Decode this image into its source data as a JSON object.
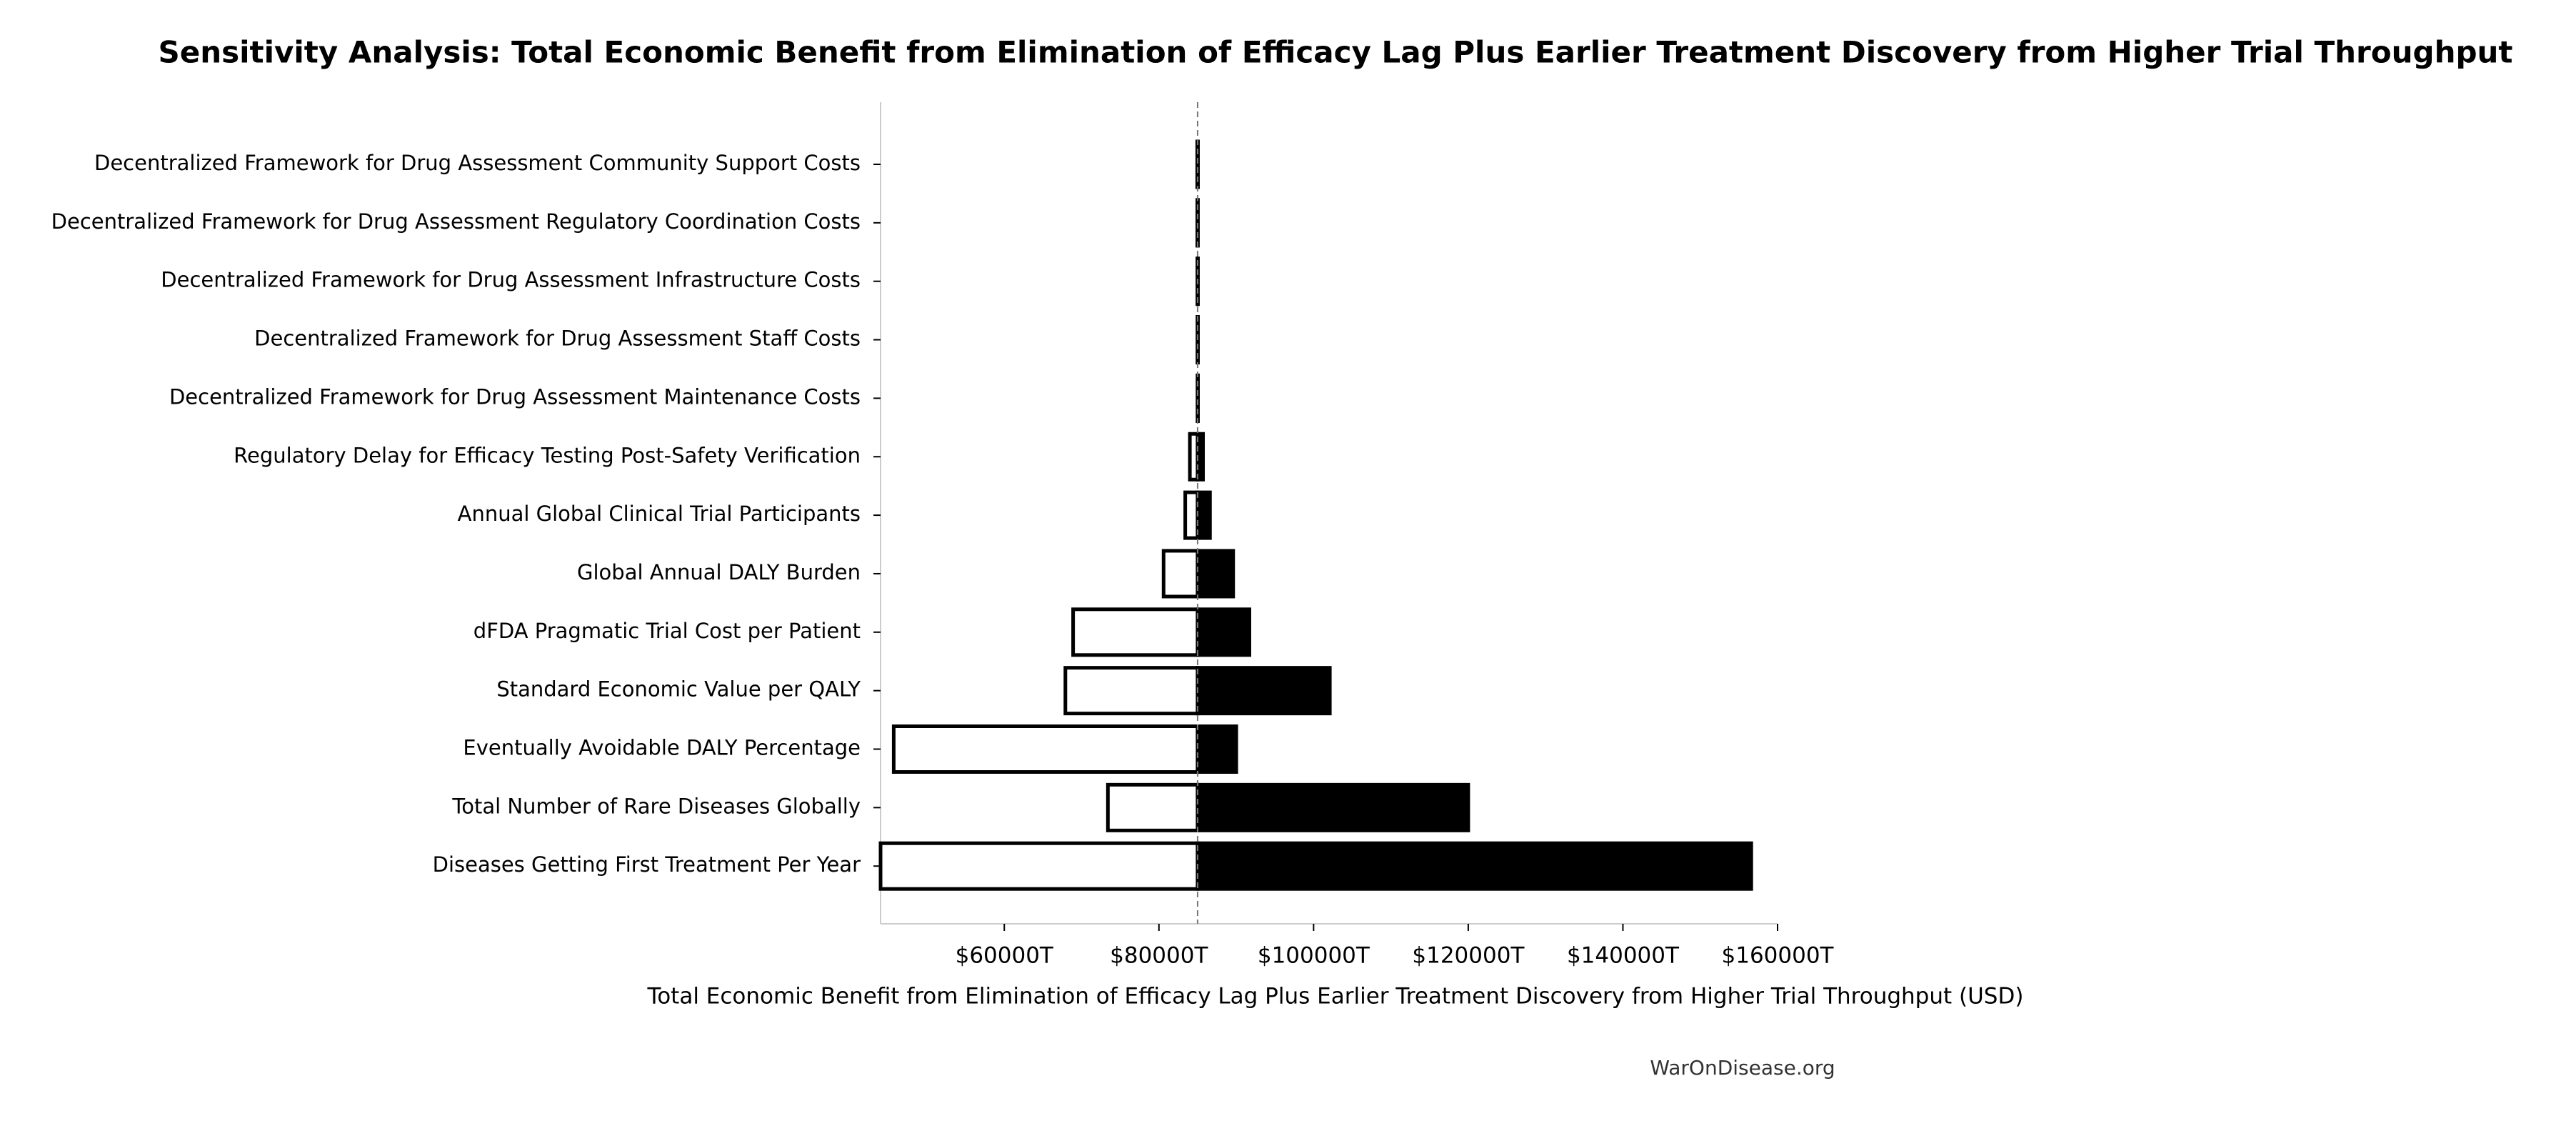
{
  "chart_data": {
    "type": "tornado",
    "title": "Sensitivity Analysis: Total Economic Benefit from Elimination of Efficacy Lag Plus Earlier Treatment Discovery from Higher Trial Throughput",
    "xlabel": "Total Economic Benefit from Elimination of Efficacy Lag Plus Earlier Treatment Discovery from Higher Trial Throughput (USD)",
    "footer": "WarOnDisease.org",
    "categories": [
      "Decentralized Framework for Drug Assessment Community Support Costs",
      "Decentralized Framework for Drug Assessment Regulatory Coordination Costs",
      "Decentralized Framework for Drug Assessment Infrastructure Costs",
      "Decentralized Framework for Drug Assessment Staff Costs",
      "Decentralized Framework for Drug Assessment Maintenance Costs",
      "Regulatory Delay for Efficacy Testing Post-Safety Verification",
      "Annual Global Clinical Trial Participants",
      "Global Annual DALY Burden",
      "dFDA Pragmatic Trial Cost per Patient",
      "Standard Economic Value per QALY",
      "Eventually Avoidable DALY Percentage",
      "Total Number of Rare Diseases Globally",
      "Diseases Getting First Treatment Per Year"
    ],
    "baseline": 85000,
    "series": [
      {
        "color": "#ffffff",
        "values": [
          84950,
          84960,
          84970,
          84980,
          84990,
          84000,
          83400,
          80600,
          68900,
          67900,
          45700,
          73400,
          44000
        ]
      },
      {
        "color": "#000000",
        "values": [
          85050,
          85040,
          85030,
          85020,
          85010,
          85700,
          86600,
          89600,
          91700,
          102100,
          90000,
          120000,
          156600
        ]
      }
    ],
    "xlim": [
      44000,
      160000
    ],
    "xticks": [
      {
        "value": 60000,
        "label": "$60000T"
      },
      {
        "value": 80000,
        "label": "$80000T"
      },
      {
        "value": 100000,
        "label": "$100000T"
      },
      {
        "value": 120000,
        "label": "$120000T"
      },
      {
        "value": 140000,
        "label": "$140000T"
      },
      {
        "value": 160000,
        "label": "$160000T"
      }
    ]
  }
}
